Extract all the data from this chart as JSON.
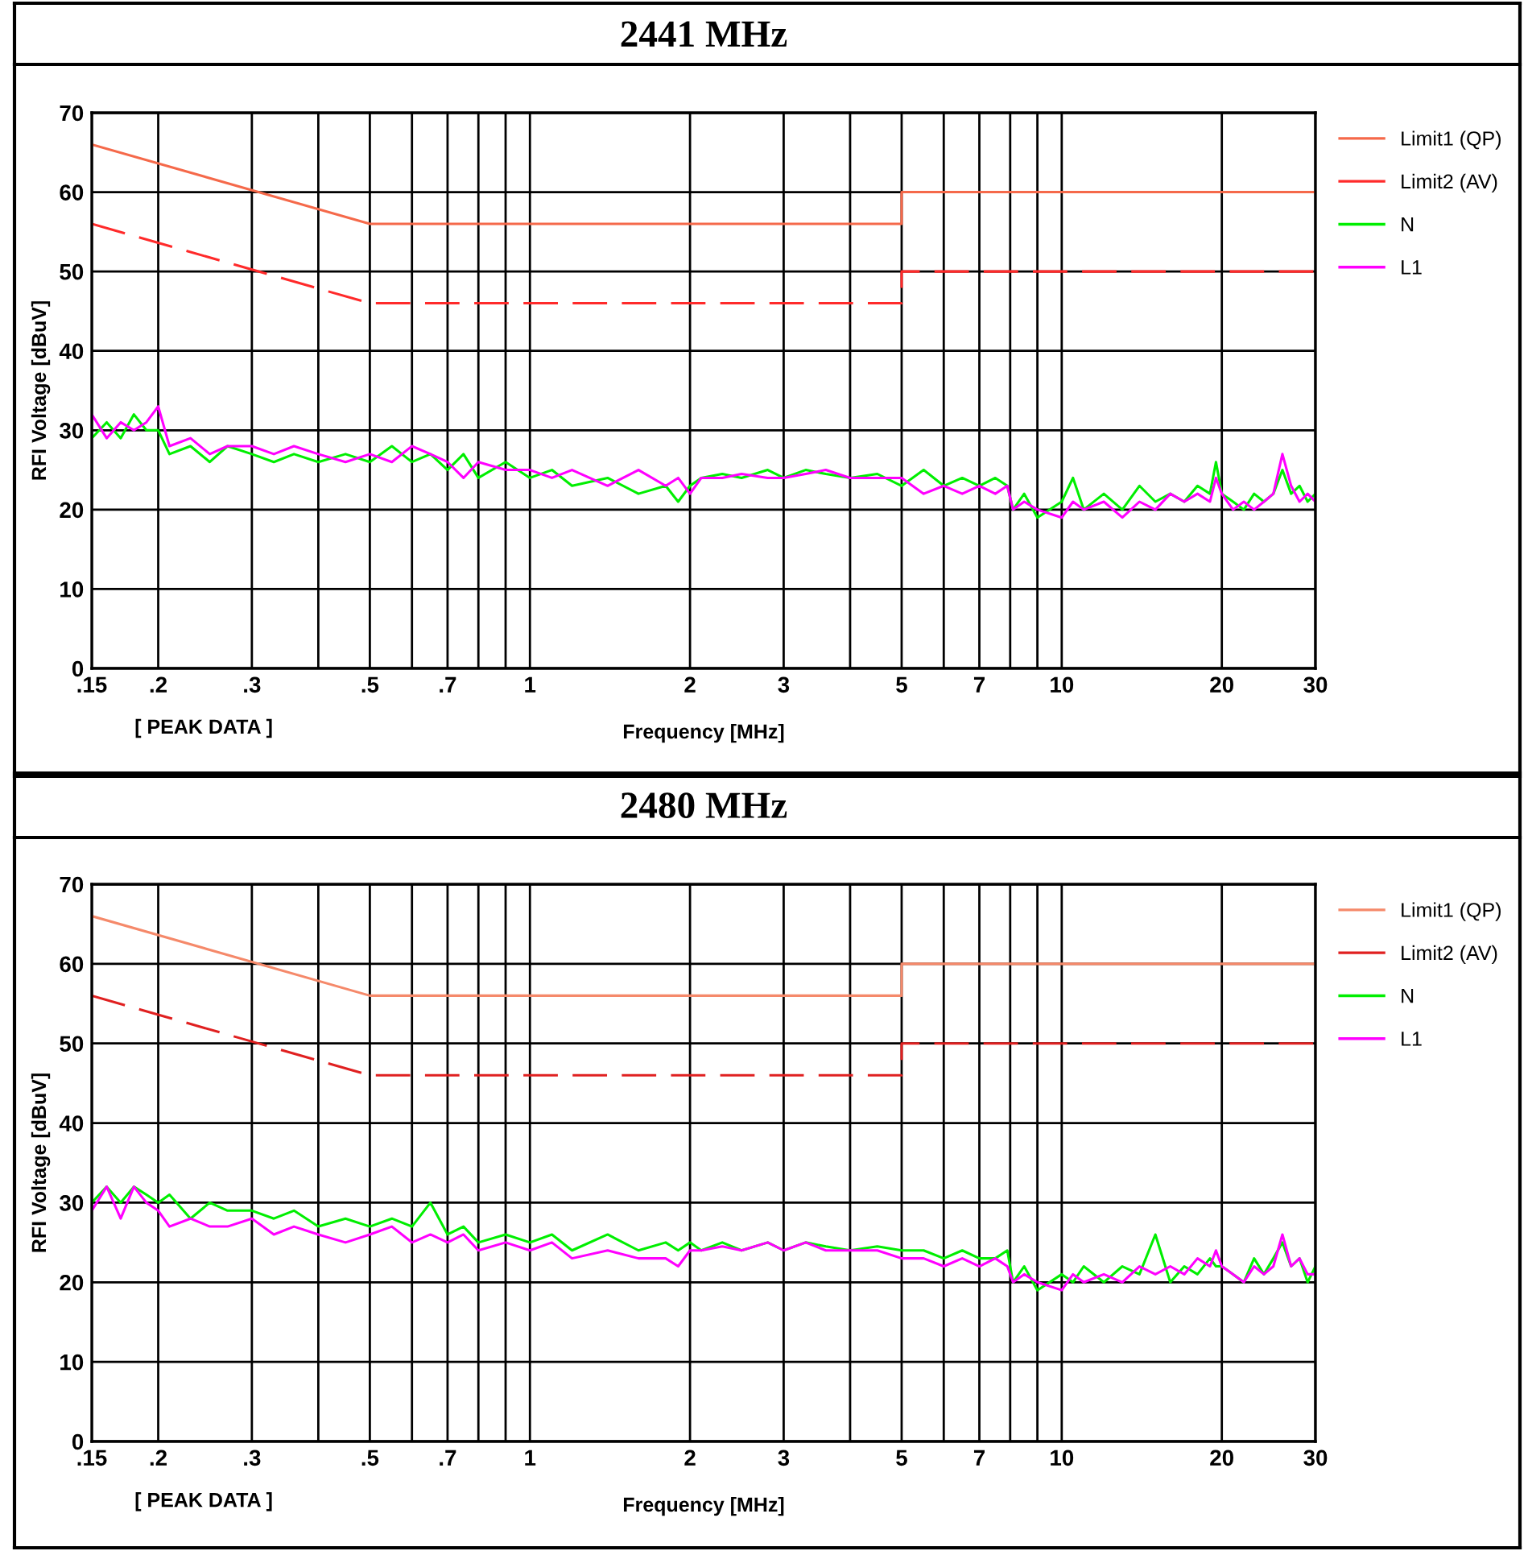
{
  "chart_data": [
    {
      "type": "line",
      "title": "2441 MHz",
      "xlabel": "Frequency [MHz]",
      "ylabel": "RFI Voltage [dBuV]",
      "annotations": [
        "[ PEAK DATA ]"
      ],
      "log": "x",
      "grid": true,
      "legend": "top right",
      "xlim": [
        0.15,
        30
      ],
      "ylim": [
        0,
        70
      ],
      "yticks": [
        0,
        10,
        20,
        30,
        40,
        50,
        60,
        70
      ],
      "xticks": [
        {
          "value": 0.15,
          "label": ".15"
        },
        {
          "value": 0.2,
          "label": ".2"
        },
        {
          "value": 0.3,
          "label": ".3"
        },
        {
          "value": 0.4,
          "label": null
        },
        {
          "value": 0.5,
          "label": ".5"
        },
        {
          "value": 0.6,
          "label": null
        },
        {
          "value": 0.7,
          "label": ".7"
        },
        {
          "value": 0.8,
          "label": null
        },
        {
          "value": 0.9,
          "label": null
        },
        1,
        2,
        3,
        {
          "value": 4,
          "label": null
        },
        5,
        {
          "value": 6,
          "label": null
        },
        7,
        {
          "value": 8,
          "label": null
        },
        {
          "value": 9,
          "label": null
        },
        10,
        20,
        30
      ],
      "series": [
        {
          "name": "Limit1 (QP)",
          "color": "#f5694a",
          "x": [
            0.15,
            0.5,
            5,
            5,
            30
          ],
          "values": [
            66,
            56,
            56,
            60,
            60
          ]
        },
        {
          "name": "Limit2 (AV)",
          "color": "#ff2a2a",
          "line_style": "dashed",
          "x": [
            0.15,
            0.5,
            5,
            5,
            30
          ],
          "values": [
            56,
            46,
            46,
            50,
            50
          ]
        },
        {
          "name": "N",
          "color": "#00ee00",
          "x": [
            0.15,
            0.16,
            0.17,
            0.18,
            0.19,
            0.2,
            0.21,
            0.23,
            0.25,
            0.27,
            0.3,
            0.33,
            0.36,
            0.4,
            0.45,
            0.5,
            0.55,
            0.6,
            0.65,
            0.7,
            0.75,
            0.8,
            0.9,
            1,
            1.1,
            1.2,
            1.4,
            1.6,
            1.8,
            1.9,
            2,
            2.1,
            2.3,
            2.5,
            2.8,
            3,
            3.3,
            3.6,
            4,
            4.5,
            5,
            5.5,
            6,
            6.5,
            7,
            7.5,
            7.9,
            8.1,
            8.5,
            9,
            10,
            10.5,
            11,
            12,
            13,
            14,
            15,
            16,
            17,
            18,
            19,
            19.5,
            20,
            21,
            22,
            23,
            24,
            25,
            26,
            27,
            28,
            29,
            30
          ],
          "values": [
            29,
            31,
            29,
            32,
            30,
            30,
            27,
            28,
            26,
            28,
            27,
            26,
            27,
            26,
            27,
            26,
            28,
            26,
            27,
            25,
            27,
            24,
            26,
            24,
            25,
            23,
            24,
            22,
            23,
            21,
            23,
            24,
            24.5,
            24,
            25,
            24,
            25,
            24.5,
            24,
            24.5,
            23,
            25,
            23,
            24,
            23,
            24,
            23,
            20,
            22,
            19,
            21,
            24,
            20,
            22,
            20,
            23,
            21,
            22,
            21,
            23,
            22,
            26,
            22,
            21,
            20,
            22,
            21,
            22,
            25,
            22,
            23,
            21,
            22
          ]
        },
        {
          "name": "L1",
          "color": "#ff00ff",
          "x": [
            0.15,
            0.16,
            0.17,
            0.18,
            0.19,
            0.2,
            0.21,
            0.23,
            0.25,
            0.27,
            0.3,
            0.33,
            0.36,
            0.4,
            0.45,
            0.5,
            0.55,
            0.6,
            0.65,
            0.7,
            0.75,
            0.8,
            0.9,
            1,
            1.1,
            1.2,
            1.4,
            1.6,
            1.8,
            1.9,
            2,
            2.1,
            2.3,
            2.5,
            2.8,
            3,
            3.3,
            3.6,
            4,
            4.5,
            5,
            5.5,
            6,
            6.5,
            7,
            7.5,
            7.9,
            8.1,
            8.5,
            9,
            10,
            10.5,
            11,
            12,
            13,
            14,
            15,
            16,
            17,
            18,
            19,
            19.5,
            20,
            21,
            22,
            23,
            24,
            25,
            26,
            27,
            28,
            29,
            30
          ],
          "values": [
            32,
            29,
            31,
            30,
            31,
            33,
            28,
            29,
            27,
            28,
            28,
            27,
            28,
            27,
            26,
            27,
            26,
            28,
            27,
            26,
            24,
            26,
            25,
            25,
            24,
            25,
            23,
            25,
            23,
            24,
            22,
            24,
            24,
            24.5,
            24,
            24,
            24.5,
            25,
            24,
            24,
            24,
            22,
            23,
            22,
            23,
            22,
            23,
            20,
            21,
            20,
            19,
            21,
            20,
            21,
            19,
            21,
            20,
            22,
            21,
            22,
            21,
            24,
            22,
            20,
            21,
            20,
            21,
            22,
            27,
            23,
            21,
            22,
            21
          ]
        }
      ]
    },
    {
      "type": "line",
      "title": "2480 MHz",
      "xlabel": "Frequency [MHz]",
      "ylabel": "RFI Voltage [dBuV]",
      "annotations": [
        "[ PEAK DATA ]"
      ],
      "log": "x",
      "grid": true,
      "legend": "top right",
      "xlim": [
        0.15,
        30
      ],
      "ylim": [
        0,
        70
      ],
      "yticks": [
        0,
        10,
        20,
        30,
        40,
        50,
        60,
        70
      ],
      "xticks": [
        {
          "value": 0.15,
          "label": ".15"
        },
        {
          "value": 0.2,
          "label": ".2"
        },
        {
          "value": 0.3,
          "label": ".3"
        },
        {
          "value": 0.4,
          "label": null
        },
        {
          "value": 0.5,
          "label": ".5"
        },
        {
          "value": 0.6,
          "label": null
        },
        {
          "value": 0.7,
          "label": ".7"
        },
        {
          "value": 0.8,
          "label": null
        },
        {
          "value": 0.9,
          "label": null
        },
        1,
        2,
        3,
        {
          "value": 4,
          "label": null
        },
        5,
        {
          "value": 6,
          "label": null
        },
        7,
        {
          "value": 8,
          "label": null
        },
        {
          "value": 9,
          "label": null
        },
        10,
        20,
        30
      ],
      "series": [
        {
          "name": "Limit1 (QP)",
          "color": "#f5896a",
          "x": [
            0.15,
            0.5,
            5,
            5,
            30
          ],
          "values": [
            66,
            56,
            56,
            60,
            60
          ]
        },
        {
          "name": "Limit2 (AV)",
          "color": "#e02020",
          "line_style": "dashed",
          "x": [
            0.15,
            0.5,
            5,
            5,
            30
          ],
          "values": [
            56,
            46,
            46,
            50,
            50
          ]
        },
        {
          "name": "N",
          "color": "#00ee00",
          "x": [
            0.15,
            0.16,
            0.17,
            0.18,
            0.19,
            0.2,
            0.21,
            0.23,
            0.25,
            0.27,
            0.3,
            0.33,
            0.36,
            0.4,
            0.45,
            0.5,
            0.55,
            0.6,
            0.65,
            0.7,
            0.75,
            0.8,
            0.9,
            1,
            1.1,
            1.2,
            1.4,
            1.6,
            1.8,
            1.9,
            2,
            2.1,
            2.3,
            2.5,
            2.8,
            3,
            3.3,
            3.6,
            4,
            4.5,
            5,
            5.5,
            6,
            6.5,
            7,
            7.5,
            7.9,
            8.1,
            8.5,
            9,
            10,
            10.5,
            11,
            12,
            13,
            14,
            15,
            16,
            17,
            18,
            19,
            19.5,
            20,
            21,
            22,
            23,
            24,
            25,
            26,
            27,
            28,
            29,
            30
          ],
          "values": [
            30,
            32,
            30,
            32,
            31,
            30,
            31,
            28,
            30,
            29,
            29,
            28,
            29,
            27,
            28,
            27,
            28,
            27,
            30,
            26,
            27,
            25,
            26,
            25,
            26,
            24,
            26,
            24,
            25,
            24,
            25,
            24,
            25,
            24,
            25,
            24,
            25,
            24.5,
            24,
            24.5,
            24,
            24,
            23,
            24,
            23,
            23,
            24,
            20,
            22,
            19,
            21,
            20,
            22,
            20,
            22,
            21,
            26,
            20,
            22,
            21,
            23,
            22,
            22,
            21,
            20,
            23,
            21,
            23,
            25,
            22,
            23,
            20,
            22
          ]
        },
        {
          "name": "L1",
          "color": "#ff00ff",
          "x": [
            0.15,
            0.16,
            0.17,
            0.18,
            0.19,
            0.2,
            0.21,
            0.23,
            0.25,
            0.27,
            0.3,
            0.33,
            0.36,
            0.4,
            0.45,
            0.5,
            0.55,
            0.6,
            0.65,
            0.7,
            0.75,
            0.8,
            0.9,
            1,
            1.1,
            1.2,
            1.4,
            1.6,
            1.8,
            1.9,
            2,
            2.1,
            2.3,
            2.5,
            2.8,
            3,
            3.3,
            3.6,
            4,
            4.5,
            5,
            5.5,
            6,
            6.5,
            7,
            7.5,
            7.9,
            8.1,
            8.5,
            9,
            10,
            10.5,
            11,
            12,
            13,
            14,
            15,
            16,
            17,
            18,
            19,
            19.5,
            20,
            21,
            22,
            23,
            24,
            25,
            26,
            27,
            28,
            29,
            30
          ],
          "values": [
            29,
            32,
            28,
            32,
            30,
            29,
            27,
            28,
            27,
            27,
            28,
            26,
            27,
            26,
            25,
            26,
            27,
            25,
            26,
            25,
            26,
            24,
            25,
            24,
            25,
            23,
            24,
            23,
            23,
            22,
            24,
            24,
            24.5,
            24,
            25,
            24,
            25,
            24,
            24,
            24,
            23,
            23,
            22,
            23,
            22,
            23,
            22,
            20,
            21,
            20,
            19,
            21,
            20,
            21,
            20,
            22,
            21,
            22,
            21,
            23,
            22,
            24,
            22,
            21,
            20,
            22,
            21,
            22,
            26,
            22,
            23,
            21,
            21
          ]
        }
      ]
    }
  ]
}
